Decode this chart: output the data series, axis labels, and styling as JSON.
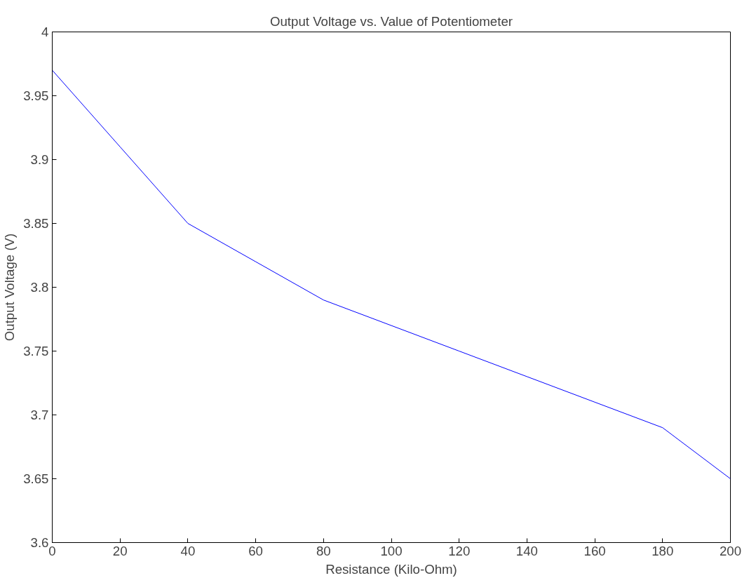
{
  "chart_data": {
    "type": "line",
    "title": "Output Voltage vs. Value of Potentiometer",
    "xlabel": "Resistance (Kilo-Ohm)",
    "ylabel": "Output Voltage (V)",
    "x": [
      0,
      20,
      40,
      60,
      80,
      100,
      120,
      140,
      160,
      180,
      200
    ],
    "series": [
      {
        "color": "#0000ff",
        "values": [
          3.97,
          3.91,
          3.85,
          3.82,
          3.79,
          3.77,
          3.75,
          3.73,
          3.71,
          3.69,
          3.65
        ]
      }
    ],
    "xlim": [
      0,
      200
    ],
    "ylim": [
      3.6,
      4
    ],
    "xticks": [
      0,
      20,
      40,
      60,
      80,
      100,
      120,
      140,
      160,
      180,
      200
    ],
    "yticks": [
      {
        "value": 3.6,
        "label": "3.6"
      },
      {
        "value": 3.65,
        "label": "3.65"
      },
      {
        "value": 3.7,
        "label": "3.7"
      },
      {
        "value": 3.75,
        "label": "3.75"
      },
      {
        "value": 3.8,
        "label": "3.8"
      },
      {
        "value": 3.85,
        "label": "3.85"
      },
      {
        "value": 3.9,
        "label": "3.9"
      },
      {
        "value": 3.95,
        "label": "3.95"
      },
      {
        "value": 4,
        "label": "4"
      }
    ],
    "grid": false,
    "marker": "none",
    "line_style": "solid"
  }
}
